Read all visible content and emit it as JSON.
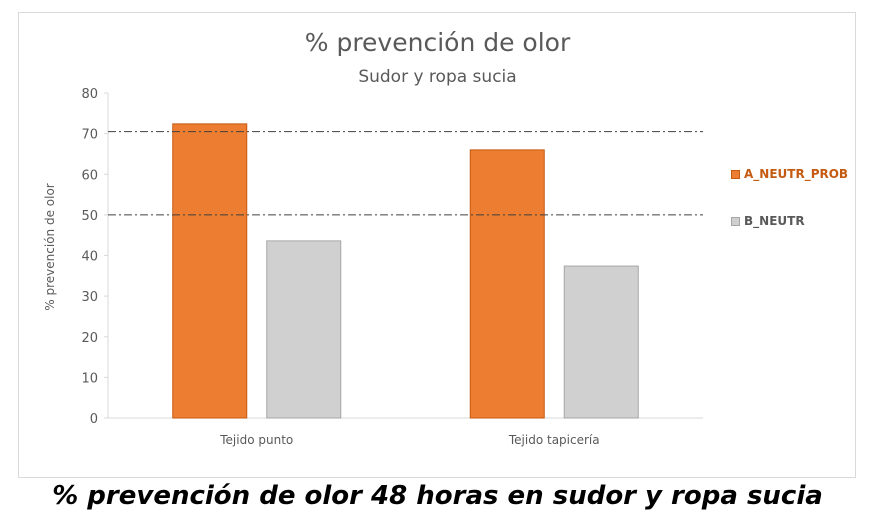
{
  "chart_data": {
    "type": "bar",
    "title": "% prevención de olor",
    "subtitle": "Sudor y ropa sucia",
    "xlabel": "",
    "ylabel": "% prevención de olor",
    "categories": [
      "Tejido punto",
      "Tejido tapicería"
    ],
    "series": [
      {
        "name": "A_NEUTR_PROB",
        "values": [
          72.4,
          66.0
        ],
        "color": "#ed7d31"
      },
      {
        "name": "B_NEUTR",
        "values": [
          43.6,
          37.4
        ],
        "color": "#d0d0d0"
      }
    ],
    "reference_lines": [
      70.5,
      50
    ],
    "ylim": [
      0,
      80
    ],
    "yticks": [
      0,
      10,
      20,
      30,
      40,
      50,
      60,
      70,
      80
    ],
    "grid": false,
    "legend_position": "right"
  },
  "caption": "% prevención de olor 48 horas en sudor y ropa sucia"
}
